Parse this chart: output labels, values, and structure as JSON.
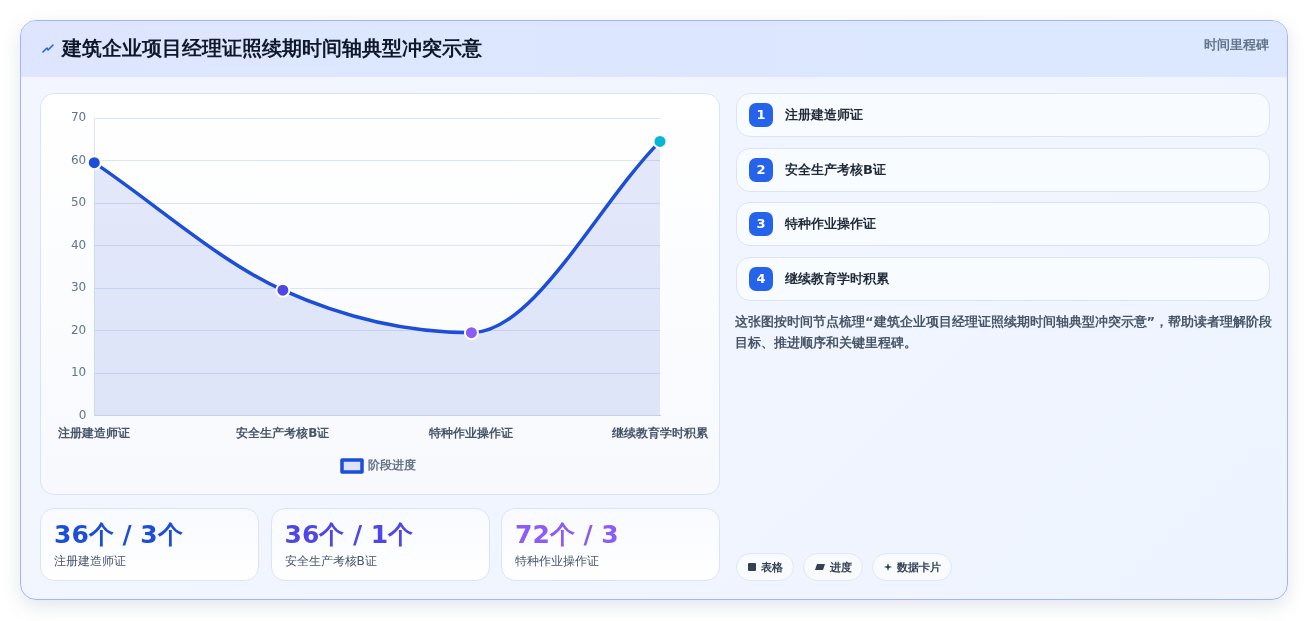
{
  "chart_data": {
    "type": "area",
    "title": "建筑企业项目经理证照续期时间轴典型冲突示意",
    "subtitle": "时间里程碑",
    "categories": [
      "注册建造师证",
      "安全生产考核B证",
      "特种作业操作证",
      "继续教育学时积累"
    ],
    "series": [
      {
        "name": "阶段进度",
        "color": "#1d4ed8",
        "colors": [
          "#1d4ed8",
          "#4f46e5",
          "#8b5cf6",
          "#06b6d4"
        ],
        "values": [
          59.5,
          29.5,
          19.5,
          64.5
        ]
      }
    ],
    "ylim": [
      0,
      70
    ],
    "yticks": [
      0,
      10,
      20,
      30,
      40,
      50,
      60,
      70
    ],
    "grid": "y",
    "legend": "bottom",
    "marker": "circle",
    "line_style": "solid",
    "annotations": [
      "1",
      "2",
      "3",
      "4",
      "这张图按时间节点梳理“建筑企业项目经理证照续期时间轴典型冲突示意”，帮助读者理解阶段目标、推进顺序和关键里程碑。",
      "36个 / 3个",
      "36个 / 1个",
      "72个 / 3",
      "表格",
      "进度",
      "数据卡片"
    ]
  }
}
